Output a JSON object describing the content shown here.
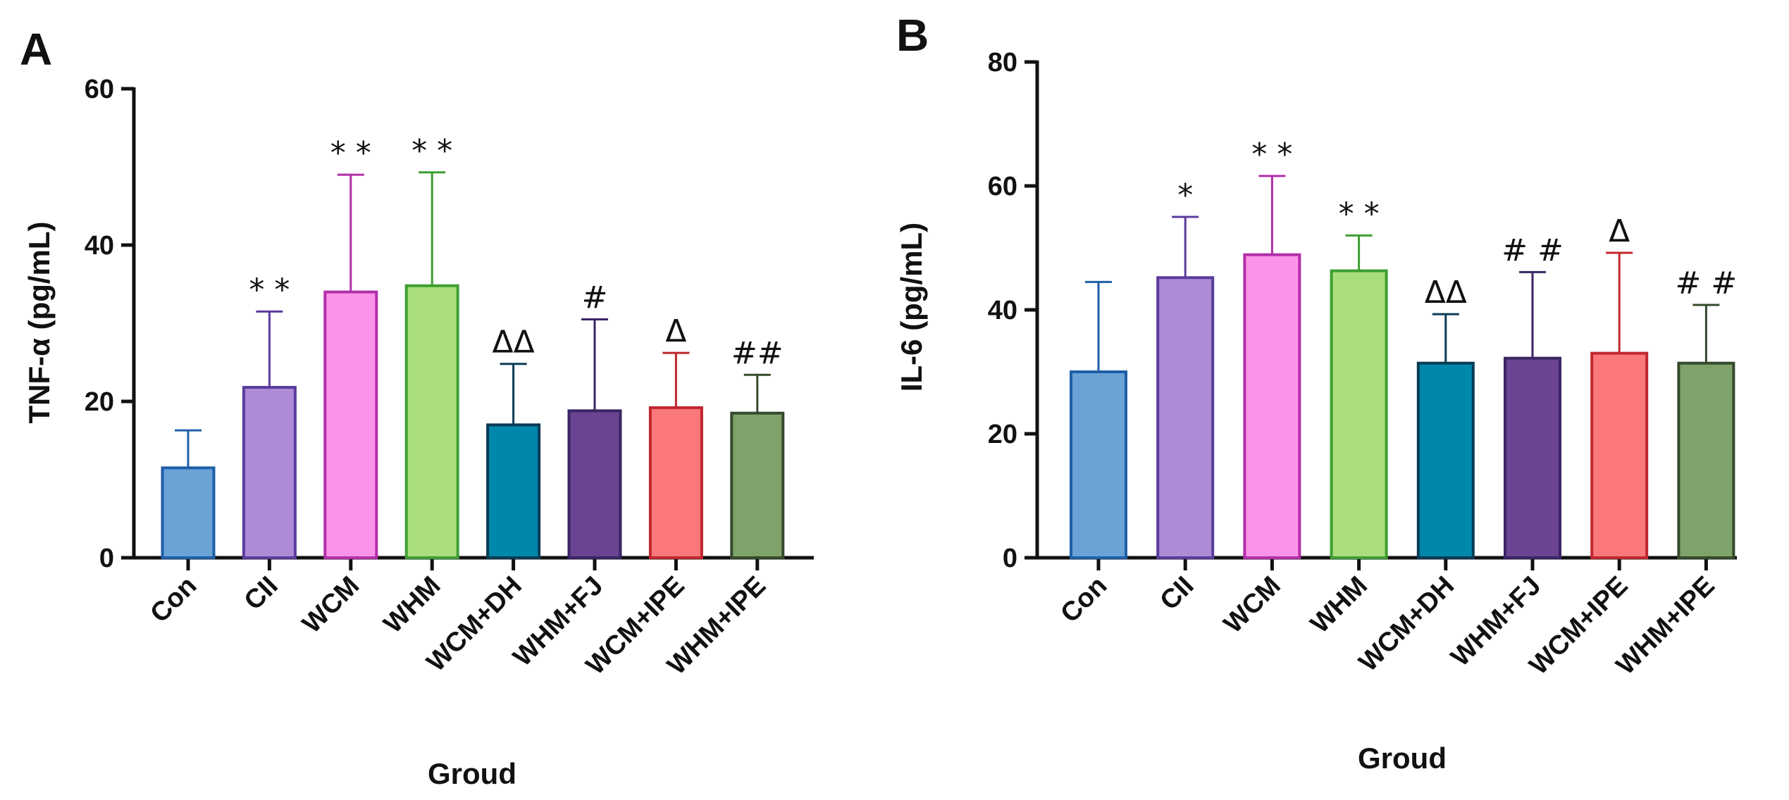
{
  "chart_data": [
    {
      "panel": "A",
      "type": "bar",
      "xlabel": "Groud",
      "ylabel": "TNF-α  (pg/mL)",
      "ylim": [
        0,
        60
      ],
      "yticks": [
        "0",
        "20",
        "40",
        "60"
      ],
      "categories": [
        "Con",
        "CII",
        "WCM",
        "WHM",
        "WCM+DH",
        "WHM+FJ",
        "WCM+IPE",
        "WHM+IPE"
      ],
      "values": [
        11.5,
        21.8,
        34.0,
        34.8,
        17.0,
        18.8,
        19.2,
        18.5
      ],
      "errors": [
        4.8,
        9.7,
        15.0,
        14.5,
        7.8,
        11.7,
        7.0,
        4.9
      ],
      "significance": [
        "",
        "* *",
        "* *",
        "* *",
        "ΔΔ",
        "#",
        "Δ",
        "##"
      ],
      "fills": [
        "#6ba3d6",
        "#ae8bd6",
        "#fb93e8",
        "#aade7c",
        "#0087ac",
        "#6b4491",
        "#fa787a",
        "#7fa26a"
      ],
      "strokes": [
        "#1f5fa8",
        "#5a3c9c",
        "#b22fa8",
        "#3d9e32",
        "#0a3b55",
        "#3a2464",
        "#c0262e",
        "#344a2c"
      ]
    },
    {
      "panel": "B",
      "type": "bar",
      "xlabel": "Groud",
      "ylabel": "IL-6 (pg/mL)",
      "ylim": [
        0,
        80
      ],
      "yticks": [
        "0",
        "20",
        "40",
        "60",
        "80"
      ],
      "categories": [
        "Con",
        "CII",
        "WCM",
        "WHM",
        "WCM+DH",
        "WHM+FJ",
        "WCM+IPE",
        "WHM+IPE"
      ],
      "values": [
        30.0,
        45.2,
        48.9,
        46.3,
        31.4,
        32.2,
        33.0,
        31.4
      ],
      "errors": [
        14.5,
        9.8,
        12.7,
        5.7,
        7.9,
        13.9,
        16.2,
        9.4
      ],
      "significance": [
        "",
        "*",
        "* *",
        "* *",
        "ΔΔ",
        "# #",
        "Δ",
        "# #"
      ],
      "fills": [
        "#6ba3d6",
        "#ae8bd6",
        "#fb93e8",
        "#aade7c",
        "#0087ac",
        "#6b4491",
        "#fa787a",
        "#7fa26a"
      ],
      "strokes": [
        "#1f5fa8",
        "#5a3c9c",
        "#b22fa8",
        "#3d9e32",
        "#0a3b55",
        "#3a2464",
        "#c0262e",
        "#344a2c"
      ]
    }
  ]
}
